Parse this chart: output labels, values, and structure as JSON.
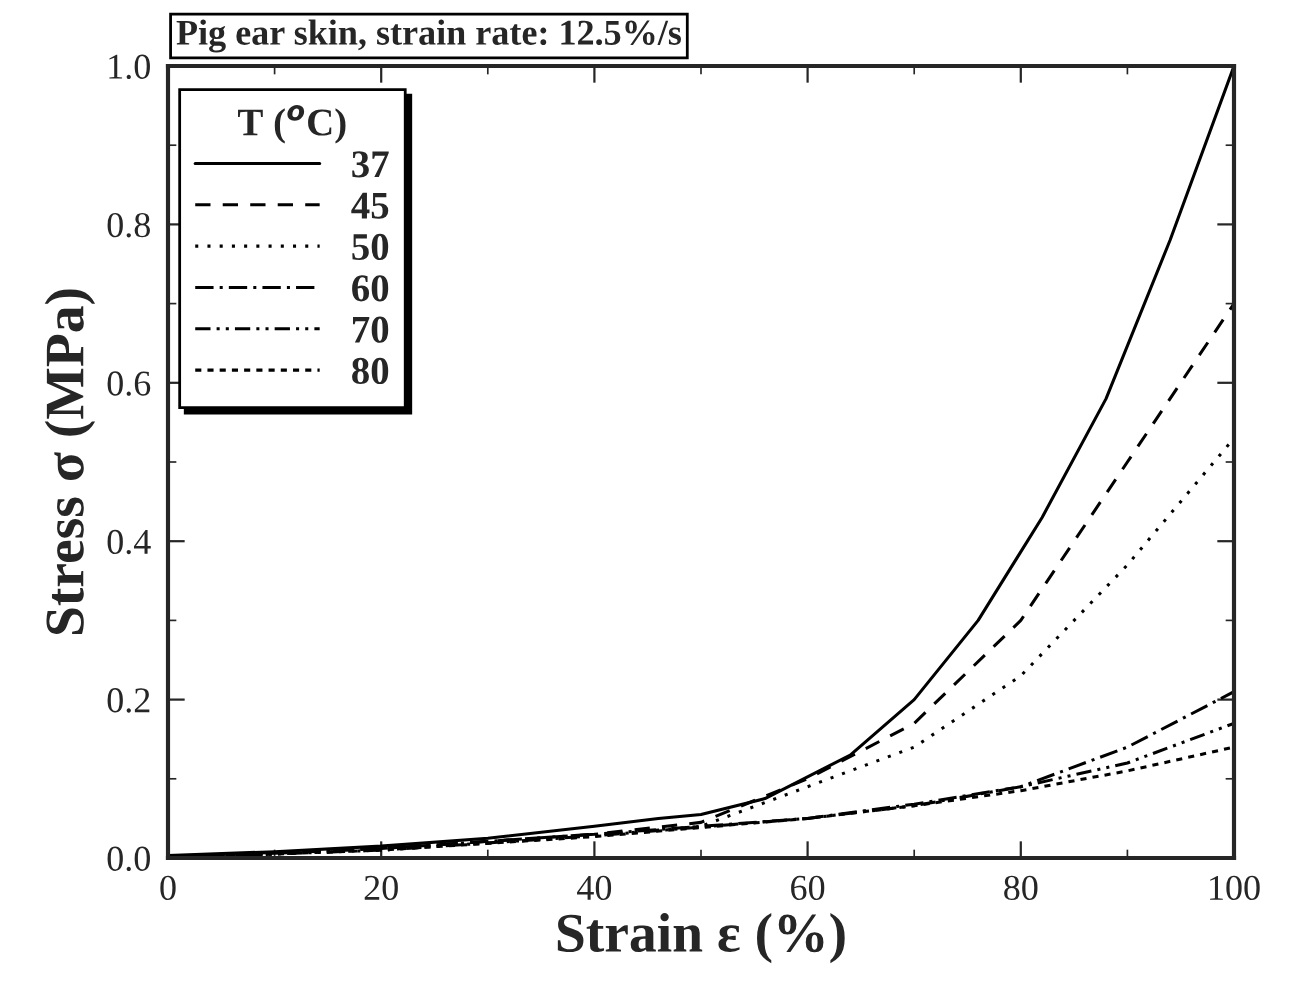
{
  "chart_data": {
    "type": "line",
    "title": "Pig ear skin, strain rate: 12.5%/s",
    "xlabel": "Strain ε (%)",
    "ylabel": "Stress σ (MPa)",
    "legend_title": "T ($^{o}$C)",
    "xlim": [
      0,
      100
    ],
    "xticks": [
      0,
      20,
      40,
      60,
      80,
      100
    ],
    "ylim": [
      0,
      1.0
    ],
    "yticks": [
      {
        "value": 0,
        "label": "0.0"
      },
      0.2,
      0.4,
      0.6,
      0.8,
      {
        "value": 1.0,
        "label": "1.0"
      }
    ],
    "grid": false,
    "legend": "top left",
    "marker": "none",
    "series": [
      {
        "name": "37",
        "color": "#000000",
        "line_style": "solid",
        "x": [
          0,
          10,
          20,
          30,
          40,
          46,
          50,
          56,
          64,
          70,
          76,
          82,
          88,
          94,
          100
        ],
        "values": [
          0.003,
          0.008,
          0.015,
          0.025,
          0.04,
          0.05,
          0.055,
          0.075,
          0.13,
          0.2,
          0.3,
          0.43,
          0.58,
          0.78,
          1.0
        ]
      },
      {
        "name": "45",
        "color": "#000000",
        "line_style": "dashed",
        "x": [
          0,
          20,
          40,
          50,
          60,
          70,
          80,
          90,
          100
        ],
        "values": [
          0.002,
          0.012,
          0.03,
          0.045,
          0.1,
          0.17,
          0.3,
          0.5,
          0.7
        ]
      },
      {
        "name": "50",
        "color": "#000000",
        "line_style": "dotted",
        "x": [
          0,
          20,
          40,
          50,
          60,
          70,
          80,
          90,
          100
        ],
        "values": [
          0.002,
          0.01,
          0.028,
          0.04,
          0.09,
          0.14,
          0.23,
          0.37,
          0.53
        ]
      },
      {
        "name": "60",
        "color": "#000000",
        "line_style": "dashdot",
        "x": [
          0,
          20,
          40,
          60,
          70,
          80,
          90,
          100
        ],
        "values": [
          0.0,
          0.012,
          0.03,
          0.05,
          0.068,
          0.09,
          0.14,
          0.21
        ]
      },
      {
        "name": "70",
        "color": "#000000",
        "line_style": "dashdotdot",
        "x": [
          0,
          20,
          40,
          60,
          70,
          80,
          90,
          100
        ],
        "values": [
          0.0,
          0.01,
          0.028,
          0.05,
          0.066,
          0.09,
          0.12,
          0.17
        ]
      },
      {
        "name": "80",
        "color": "#000000",
        "line_style": "shortdash",
        "x": [
          0,
          20,
          40,
          60,
          70,
          80,
          90,
          100
        ],
        "values": [
          0.0,
          0.01,
          0.027,
          0.05,
          0.066,
          0.085,
          0.11,
          0.14
        ]
      }
    ]
  }
}
